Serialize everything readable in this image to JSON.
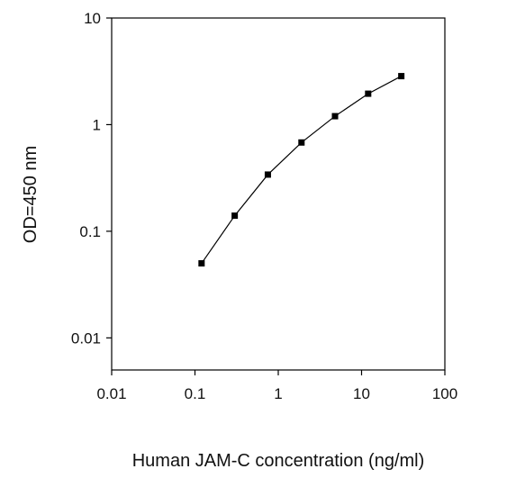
{
  "chart_data": {
    "type": "line",
    "title": "",
    "xlabel": "Human JAM-C concentration (ng/ml)",
    "ylabel": "OD=450 nm",
    "xscale": "log",
    "yscale": "log",
    "xlim": [
      0.01,
      100
    ],
    "ylim": [
      0.005,
      10
    ],
    "x_ticks": [
      {
        "value": 0.01,
        "label": "0.01"
      },
      {
        "value": 0.1,
        "label": "0.1"
      },
      {
        "value": 1,
        "label": "1"
      },
      {
        "value": 10,
        "label": "10"
      },
      {
        "value": 100,
        "label": "100"
      }
    ],
    "y_ticks": [
      {
        "value": 0.01,
        "label": "0.01"
      },
      {
        "value": 0.1,
        "label": "0.1"
      },
      {
        "value": 1,
        "label": "1"
      },
      {
        "value": 10,
        "label": "10"
      }
    ],
    "grid": false,
    "legend": "none",
    "series": [
      {
        "x": [
          0.12,
          0.3,
          0.75,
          1.9,
          4.8,
          12,
          30
        ],
        "y": [
          0.05,
          0.14,
          0.34,
          0.68,
          1.2,
          1.95,
          2.85
        ],
        "color": "#000000",
        "marker": "square"
      }
    ]
  }
}
